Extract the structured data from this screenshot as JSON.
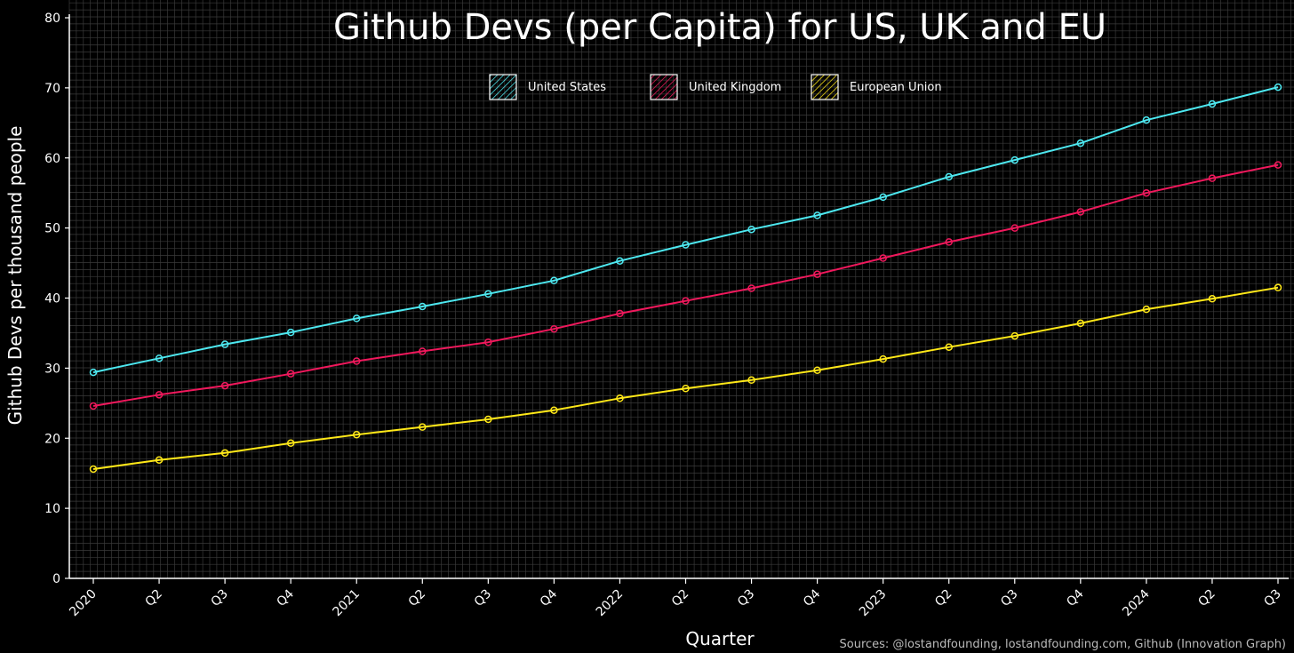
{
  "chart_data": {
    "type": "line",
    "title": "Github Devs (per Capita) for US, UK and EU",
    "xlabel": "Quarter",
    "ylabel": "Github Devs per thousand people",
    "source": "Sources: @lostandfounding, lostandfounding.com, Github (Innovation Graph)",
    "ylim": [
      0,
      80
    ],
    "yticks": [
      0,
      10,
      20,
      30,
      40,
      50,
      60,
      70,
      80
    ],
    "grid": true,
    "legend_position": "top-center",
    "categories": [
      "2020",
      "Q2",
      "Q3",
      "Q4",
      "2021",
      "Q2",
      "Q3",
      "Q4",
      "2022",
      "Q2",
      "Q3",
      "Q4",
      "2023",
      "Q2",
      "Q3",
      "Q4",
      "2024",
      "Q2",
      "Q3"
    ],
    "series": [
      {
        "name": "United States",
        "color": "#4de8f0",
        "values": [
          29.4,
          31.4,
          33.4,
          35.1,
          37.1,
          38.8,
          40.6,
          42.5,
          45.3,
          47.6,
          49.8,
          51.8,
          54.4,
          57.3,
          59.7,
          62.1,
          65.4,
          67.7,
          70.1
        ]
      },
      {
        "name": "United Kingdom",
        "color": "#f0185c",
        "values": [
          24.6,
          26.2,
          27.5,
          29.2,
          31.0,
          32.4,
          33.7,
          35.6,
          37.8,
          39.6,
          41.4,
          43.4,
          45.7,
          48.0,
          50.0,
          52.3,
          55.0,
          57.1,
          59.0
        ]
      },
      {
        "name": "European Union",
        "color": "#ffe818",
        "values": [
          15.6,
          16.9,
          17.9,
          19.3,
          20.5,
          21.6,
          22.7,
          24.0,
          25.7,
          27.1,
          28.3,
          29.7,
          31.3,
          33.0,
          34.6,
          36.4,
          38.4,
          39.9,
          41.5
        ]
      }
    ]
  }
}
